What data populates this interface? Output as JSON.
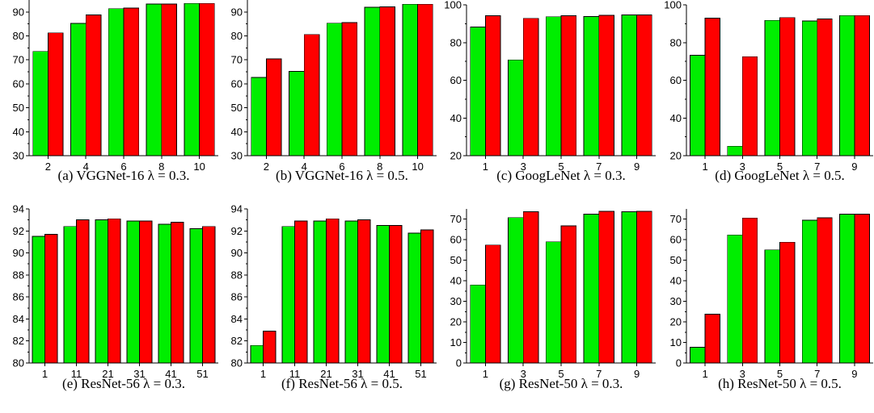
{
  "colors": {
    "series_a": "#00ee00",
    "series_b": "#ff0000"
  },
  "chart_data": [
    {
      "type": "bar",
      "caption": "(a) VGGNet-16 λ = 0.3.",
      "categories": [
        "2",
        "4",
        "6",
        "8",
        "10"
      ],
      "ylim": [
        30,
        95
      ],
      "yticks": [
        30,
        40,
        50,
        60,
        70,
        80,
        90
      ],
      "series": [
        {
          "values": [
            73.5,
            85.2,
            91.4,
            93.3,
            93.6
          ]
        },
        {
          "values": [
            81.3,
            88.8,
            91.6,
            93.3,
            93.6
          ]
        }
      ]
    },
    {
      "type": "bar",
      "caption": "(b) VGGNet-16 λ = 0.5.",
      "categories": [
        "2",
        "4",
        "6",
        "8",
        "10"
      ],
      "ylim": [
        30,
        95
      ],
      "yticks": [
        30,
        40,
        50,
        60,
        70,
        80,
        90
      ],
      "series": [
        {
          "values": [
            62.7,
            65.2,
            85.3,
            92.0,
            93.2
          ]
        },
        {
          "values": [
            70.4,
            80.6,
            85.6,
            92.1,
            93.2
          ]
        }
      ]
    },
    {
      "type": "bar",
      "caption": "(c) GoogLeNet λ = 0.3.",
      "categories": [
        "1",
        "3",
        "5",
        "7",
        "9"
      ],
      "ylim": [
        20,
        100
      ],
      "yticks": [
        20,
        40,
        60,
        80,
        100
      ],
      "series": [
        {
          "values": [
            88.2,
            70.8,
            93.7,
            93.8,
            94.6
          ]
        },
        {
          "values": [
            94.2,
            92.8,
            94.2,
            94.5,
            94.6
          ]
        }
      ]
    },
    {
      "type": "bar",
      "caption": "(d) GoogLeNet λ = 0.5.",
      "categories": [
        "1",
        "3",
        "5",
        "7",
        "9"
      ],
      "ylim": [
        20,
        100
      ],
      "yticks": [
        20,
        40,
        60,
        80,
        100
      ],
      "series": [
        {
          "values": [
            73.2,
            25.0,
            91.8,
            91.4,
            94.3
          ]
        },
        {
          "values": [
            93.0,
            72.5,
            93.3,
            92.5,
            94.3
          ]
        }
      ]
    },
    {
      "type": "bar",
      "caption": "(e) ResNet-56 λ = 0.3.",
      "categories": [
        "1",
        "11",
        "21",
        "31",
        "41",
        "51"
      ],
      "ylim": [
        80,
        94
      ],
      "yticks": [
        80,
        82,
        84,
        86,
        88,
        90,
        92,
        94
      ],
      "series": [
        {
          "values": [
            91.5,
            92.4,
            93.0,
            92.9,
            92.6,
            92.2
          ]
        },
        {
          "values": [
            91.7,
            93.0,
            93.1,
            92.9,
            92.8,
            92.4
          ]
        }
      ]
    },
    {
      "type": "bar",
      "caption": "(f) ResNet-56 λ = 0.5.",
      "categories": [
        "1",
        "11",
        "21",
        "31",
        "41",
        "51"
      ],
      "ylim": [
        80,
        94
      ],
      "yticks": [
        80,
        82,
        84,
        86,
        88,
        90,
        92,
        94
      ],
      "series": [
        {
          "values": [
            81.6,
            92.4,
            92.9,
            92.9,
            92.5,
            91.8
          ]
        },
        {
          "values": [
            82.9,
            92.9,
            93.1,
            93.0,
            92.5,
            92.1
          ]
        }
      ]
    },
    {
      "type": "bar",
      "caption": "(g) ResNet-50 λ = 0.3.",
      "categories": [
        "1",
        "3",
        "5",
        "7",
        "9"
      ],
      "ylim": [
        0,
        75
      ],
      "yticks": [
        0,
        10,
        20,
        30,
        40,
        50,
        60,
        70
      ],
      "series": [
        {
          "values": [
            38.0,
            70.8,
            59.0,
            72.4,
            73.6
          ]
        },
        {
          "values": [
            57.4,
            73.6,
            66.7,
            73.8,
            73.8
          ]
        }
      ]
    },
    {
      "type": "bar",
      "caption": "(h) ResNet-50 λ = 0.5.",
      "categories": [
        "1",
        "3",
        "5",
        "7",
        "9"
      ],
      "ylim": [
        0,
        75
      ],
      "yticks": [
        0,
        10,
        20,
        30,
        40,
        50,
        60,
        70
      ],
      "series": [
        {
          "values": [
            7.6,
            62.3,
            55.1,
            69.5,
            72.5
          ]
        },
        {
          "values": [
            23.8,
            70.6,
            58.8,
            70.7,
            72.5
          ]
        }
      ]
    }
  ]
}
